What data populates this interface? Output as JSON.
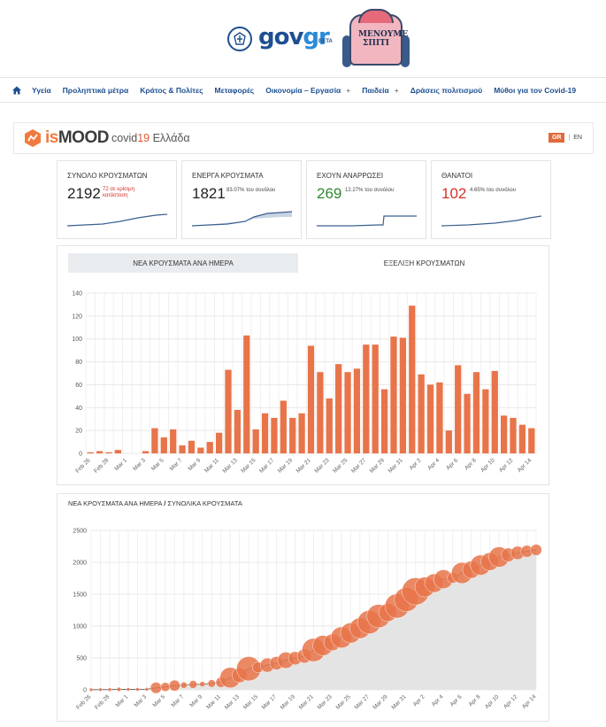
{
  "header": {
    "govgr_gov": "gov",
    "govgr_gr": "gr",
    "beta": "BETA",
    "stay_home_line1": "ΜΕΝΟΥΜΕ",
    "stay_home_line2": "ΣΠΙΤΙ"
  },
  "nav": {
    "items": [
      "Υγεία",
      "Προληπτικά μέτρα",
      "Κράτος & Πολίτες",
      "Μεταφορές",
      "Οικονομία – Εργασία",
      "Παιδεία",
      "Δράσεις πολιτισμού",
      "Μύθοι για τον Covid-19"
    ],
    "plus": "+"
  },
  "ismood": {
    "logo_is": "is",
    "logo_mood": "MOOD",
    "title_covid": "covid",
    "title_num": "19",
    "title_country": "Ελλάδα",
    "lang_gr": "GR",
    "lang_sep": "|",
    "lang_en": "EN"
  },
  "stats": {
    "total": {
      "label": "ΣΥΝΟΛΟ ΚΡΟΥΣΜΑΤΩΝ",
      "value": "2192",
      "note1": "72 σε κρίσιμη",
      "note2": "κατάσταση"
    },
    "active": {
      "label": "ΕΝΕΡΓΑ ΚΡΟΥΣΜΑΤΑ",
      "value": "1821",
      "note": "83.07% του συνόλου"
    },
    "recovered": {
      "label": "ΕΧΟΥΝ ΑΝΑΡΡΩΣΕΙ",
      "value": "269",
      "note": "12.27% του συνόλου"
    },
    "deaths": {
      "label": "ΘΑΝΑΤΟΙ",
      "value": "102",
      "note": "4.65% του συνόλου"
    }
  },
  "colors": {
    "accent": "#e8744a",
    "navy": "#1d4f91",
    "red": "#d0342c",
    "green": "#2e8b2e",
    "spark": "#3b5f8f"
  },
  "tabs": {
    "daily": "ΝΕΑ ΚΡΟΥΣΜΑΤΑ ΑΝΑ ΗΜΕΡΑ",
    "evolution": "ΕΞΕΛΙΞΗ ΚΡΟΥΣΜΑΤΩΝ"
  },
  "chart2_title": {
    "part1": "ΝΕΑ ΚΡΟΥΣΜΑΤΑ ΑΝΑ ΗΜΕΡΑ",
    "slash": "/",
    "part2": "ΣΥΝΟΛΙΚΑ ΚΡΟΥΣΜΑΤΑ"
  },
  "chart_data": [
    {
      "type": "bar",
      "title": "ΝΕΑ ΚΡΟΥΣΜΑΤΑ ΑΝΑ ΗΜΕΡΑ",
      "ylim": [
        0,
        140
      ],
      "yticks": [
        0,
        20,
        40,
        60,
        80,
        100,
        120,
        140
      ],
      "tick_labels": [
        "Feb 26",
        "Feb 28",
        "Mar 1",
        "Mar 3",
        "Mar 5",
        "Mar 7",
        "Mar 9",
        "Mar 11",
        "Mar 13",
        "Mar 15",
        "Mar 17",
        "Mar 19",
        "Mar 21",
        "Mar 23",
        "Mar 25",
        "Mar 27",
        "Mar 29",
        "Mar 31",
        "Apr 2",
        "Apr 4",
        "Apr 6",
        "Apr 8",
        "Apr 10",
        "Apr 12",
        "Apr 14"
      ],
      "values": [
        1,
        2,
        1,
        3,
        0,
        0,
        2,
        22,
        14,
        21,
        7,
        11,
        5,
        10,
        18,
        73,
        38,
        103,
        21,
        35,
        31,
        46,
        31,
        35,
        94,
        71,
        48,
        78,
        71,
        74,
        95,
        95,
        56,
        102,
        101,
        129,
        69,
        60,
        62,
        20,
        77,
        52,
        71,
        56,
        72,
        33,
        31,
        25,
        22
      ]
    },
    {
      "type": "area",
      "title": "ΣΥΝΟΛΙΚΑ ΚΡΟΥΣΜΑΤΑ",
      "ylim": [
        0,
        2500
      ],
      "yticks": [
        0,
        500,
        1000,
        1500,
        2000,
        2500
      ],
      "tick_labels": [
        "Feb 26",
        "Feb 28",
        "Mar 1",
        "Mar 3",
        "Mar 5",
        "Mar 7",
        "Mar 9",
        "Mar 11",
        "Mar 13",
        "Mar 15",
        "Mar 17",
        "Mar 19",
        "Mar 21",
        "Mar 23",
        "Mar 25",
        "Mar 27",
        "Mar 29",
        "Mar 31",
        "Apr 2",
        "Apr 4",
        "Apr 6",
        "Apr 8",
        "Apr 10",
        "Apr 12",
        "Apr 14"
      ],
      "note": "Bubble size shows new daily cases"
    }
  ]
}
